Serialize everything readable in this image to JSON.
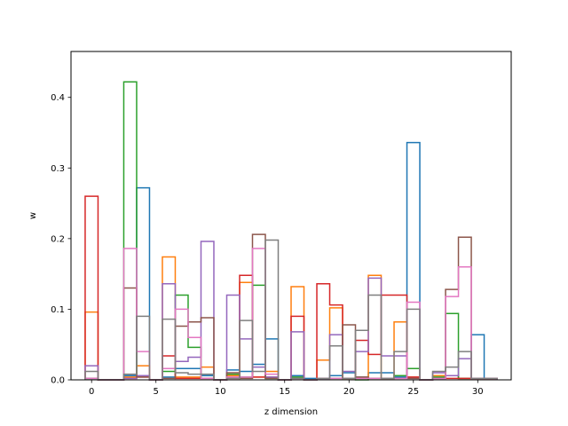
{
  "chart_data": {
    "type": "bar",
    "histtype": "step",
    "xlabel": "z dimension",
    "ylabel": "w",
    "xlim": [
      -1.6,
      32.6
    ],
    "ylim": [
      0,
      0.465
    ],
    "bin_width": 1,
    "xticks": [
      0,
      5,
      10,
      15,
      20,
      25,
      30
    ],
    "yticks": [
      0.0,
      0.1,
      0.2,
      0.3,
      0.4
    ],
    "ytick_labels": [
      "0.0",
      "0.1",
      "0.2",
      "0.3",
      "0.4"
    ],
    "grid": false,
    "legend": "none",
    "series": [
      {
        "color": "#1f77b4",
        "values": [
          0.002,
          0,
          0,
          0.006,
          0.272,
          0,
          0.004,
          0.016,
          0.016,
          0.006,
          0,
          0.014,
          0.012,
          0.022,
          0.058,
          0,
          0.006,
          0.002,
          0.002,
          0.006,
          0.01,
          0.004,
          0.01,
          0.01,
          0.004,
          0.336,
          0,
          0.002,
          0.006,
          0.002,
          0.064,
          0.002
        ]
      },
      {
        "color": "#ff7f0e",
        "values": [
          0.096,
          0,
          0,
          0.004,
          0.02,
          0,
          0.174,
          0.004,
          0.004,
          0.018,
          0,
          0.006,
          0.138,
          0.004,
          0.012,
          0,
          0.132,
          0,
          0.028,
          0.102,
          0.002,
          0.002,
          0.148,
          0.002,
          0.082,
          0.004,
          0,
          0.006,
          0.006,
          0.002,
          0.002,
          0.002
        ]
      },
      {
        "color": "#2ca02c",
        "values": [
          0.002,
          0,
          0,
          0.422,
          0.006,
          0,
          0.012,
          0.12,
          0.046,
          0.002,
          0,
          0.008,
          0.004,
          0.134,
          0.002,
          0,
          0.004,
          0,
          0.002,
          0.002,
          0.002,
          0,
          0.002,
          0.002,
          0.006,
          0.016,
          0,
          0.004,
          0.094,
          0.002,
          0.002,
          0.002
        ]
      },
      {
        "color": "#d62728",
        "values": [
          0.26,
          0,
          0,
          0.002,
          0.004,
          0,
          0.034,
          0.002,
          0.002,
          0.002,
          0,
          0.002,
          0.148,
          0.004,
          0.004,
          0,
          0.09,
          0,
          0.136,
          0.106,
          0.002,
          0.056,
          0.036,
          0.12,
          0.12,
          0.004,
          0,
          0.002,
          0.002,
          0.002,
          0.002,
          0.002
        ]
      },
      {
        "color": "#9467bd",
        "values": [
          0.02,
          0,
          0,
          0.002,
          0.006,
          0,
          0.136,
          0.026,
          0.032,
          0.196,
          0,
          0.12,
          0.058,
          0.018,
          0.004,
          0,
          0.068,
          0,
          0.002,
          0.064,
          0.012,
          0.04,
          0.144,
          0.034,
          0.034,
          0.002,
          0,
          0.01,
          0.006,
          0.03,
          0.002,
          0.002
        ]
      },
      {
        "color": "#8c564b",
        "values": [
          0.002,
          0,
          0,
          0.13,
          0.004,
          0,
          0.002,
          0.076,
          0.082,
          0.088,
          0,
          0.01,
          0.002,
          0.206,
          0.002,
          0,
          0.002,
          0,
          0.002,
          0.002,
          0.078,
          0.004,
          0.002,
          0.002,
          0.002,
          0.002,
          0,
          0.002,
          0.128,
          0.202,
          0.002,
          0.002
        ]
      },
      {
        "color": "#e377c2",
        "values": [
          0.002,
          0,
          0,
          0.186,
          0.04,
          0,
          0.016,
          0.1,
          0.06,
          0.002,
          0,
          0.004,
          0.004,
          0.186,
          0.008,
          0,
          0.002,
          0,
          0.002,
          0.002,
          0.002,
          0.002,
          0.002,
          0.002,
          0.002,
          0.11,
          0,
          0.002,
          0.118,
          0.16,
          0.002,
          0.002
        ]
      },
      {
        "color": "#7f7f7f",
        "values": [
          0.012,
          0,
          0,
          0.008,
          0.09,
          0,
          0.086,
          0.01,
          0.008,
          0.008,
          0,
          0.002,
          0.084,
          0.012,
          0.198,
          0,
          0.002,
          0,
          0.002,
          0.048,
          0.002,
          0.07,
          0.12,
          0.002,
          0.04,
          0.1,
          0,
          0.012,
          0.018,
          0.04,
          0.002,
          0.002
        ]
      }
    ]
  }
}
